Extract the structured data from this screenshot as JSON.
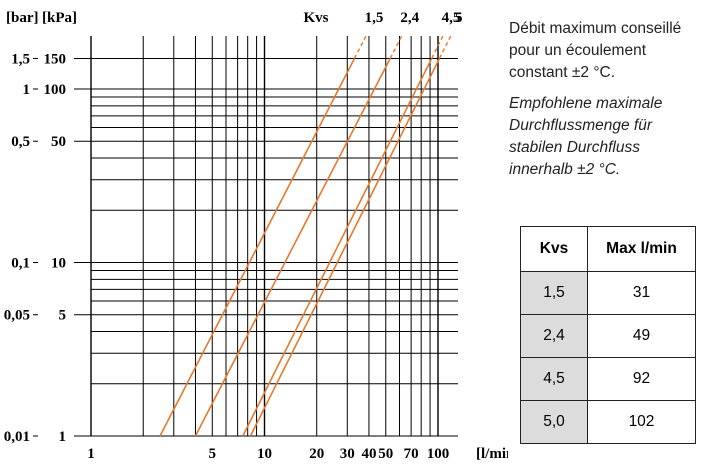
{
  "chart_data": {
    "type": "line",
    "xscale": "log",
    "yscale": "log",
    "xlim": [
      1,
      100
    ],
    "ylim_kpa": [
      1,
      150
    ],
    "x_unit_label": "[l/min]",
    "y_unit_label_bar": "[bar]",
    "y_unit_label_kpa": "[kPa]",
    "x_ticks": [
      {
        "label": "1",
        "value": 1
      },
      {
        "label": "5",
        "value": 5
      },
      {
        "label": "10",
        "value": 10
      },
      {
        "label": "20",
        "value": 20
      },
      {
        "label": "30",
        "value": 30
      },
      {
        "label": "40",
        "value": 40
      },
      {
        "label": "50",
        "value": 50
      },
      {
        "label": "70",
        "value": 70
      },
      {
        "label": "100",
        "value": 100
      }
    ],
    "y_ticks_kpa": [
      {
        "label": "150",
        "value": 150
      },
      {
        "label": "100",
        "value": 100
      },
      {
        "label": "50",
        "value": 50
      },
      {
        "label": "10",
        "value": 10
      },
      {
        "label": "5",
        "value": 5
      },
      {
        "label": "1",
        "value": 1
      }
    ],
    "y_ticks_bar": [
      {
        "label": "1,5",
        "value": 150
      },
      {
        "label": "1",
        "value": 100
      },
      {
        "label": "0,5",
        "value": 50
      },
      {
        "label": "0,1",
        "value": 10
      },
      {
        "label": "0,05",
        "value": 5
      },
      {
        "label": "0,01",
        "value": 1
      }
    ],
    "x_grid": [
      1,
      2,
      3,
      4,
      5,
      6,
      7,
      8,
      9,
      10,
      20,
      30,
      40,
      50,
      60,
      70,
      80,
      90,
      100
    ],
    "y_grid": [
      1,
      2,
      3,
      4,
      5,
      6,
      7,
      8,
      9,
      10,
      20,
      30,
      40,
      50,
      60,
      70,
      80,
      90,
      100,
      150
    ],
    "kvs_header": "Kvs",
    "line_color": "#e8782e",
    "series": [
      {
        "name": "1,5",
        "points": [
          [
            2.5,
            1
          ],
          [
            33,
            150
          ]
        ],
        "dashed_until": 36
      },
      {
        "name": "2,4",
        "points": [
          [
            4,
            1
          ],
          [
            53,
            150
          ]
        ],
        "dashed_until": 58
      },
      {
        "name": "4,5",
        "points": [
          [
            7.5,
            1
          ],
          [
            92,
            150
          ]
        ],
        "dashed_until": 104
      },
      {
        "name": "5",
        "points": [
          [
            8.3,
            1
          ],
          [
            102,
            150
          ]
        ],
        "dashed_until": 114
      }
    ]
  },
  "info": {
    "fr_text": "Débit maximum conseillé pour un écoulement constant ±2 °C.",
    "de_text": "Empfohlene maximale Durchflussmenge für stabilen Durchfluss innerhalb ±2 °C."
  },
  "table": {
    "headers": [
      "Kvs",
      "Max l/min"
    ],
    "rows": [
      [
        "1,5",
        "31"
      ],
      [
        "2,4",
        "49"
      ],
      [
        "4,5",
        "92"
      ],
      [
        "5,0",
        "102"
      ]
    ]
  }
}
